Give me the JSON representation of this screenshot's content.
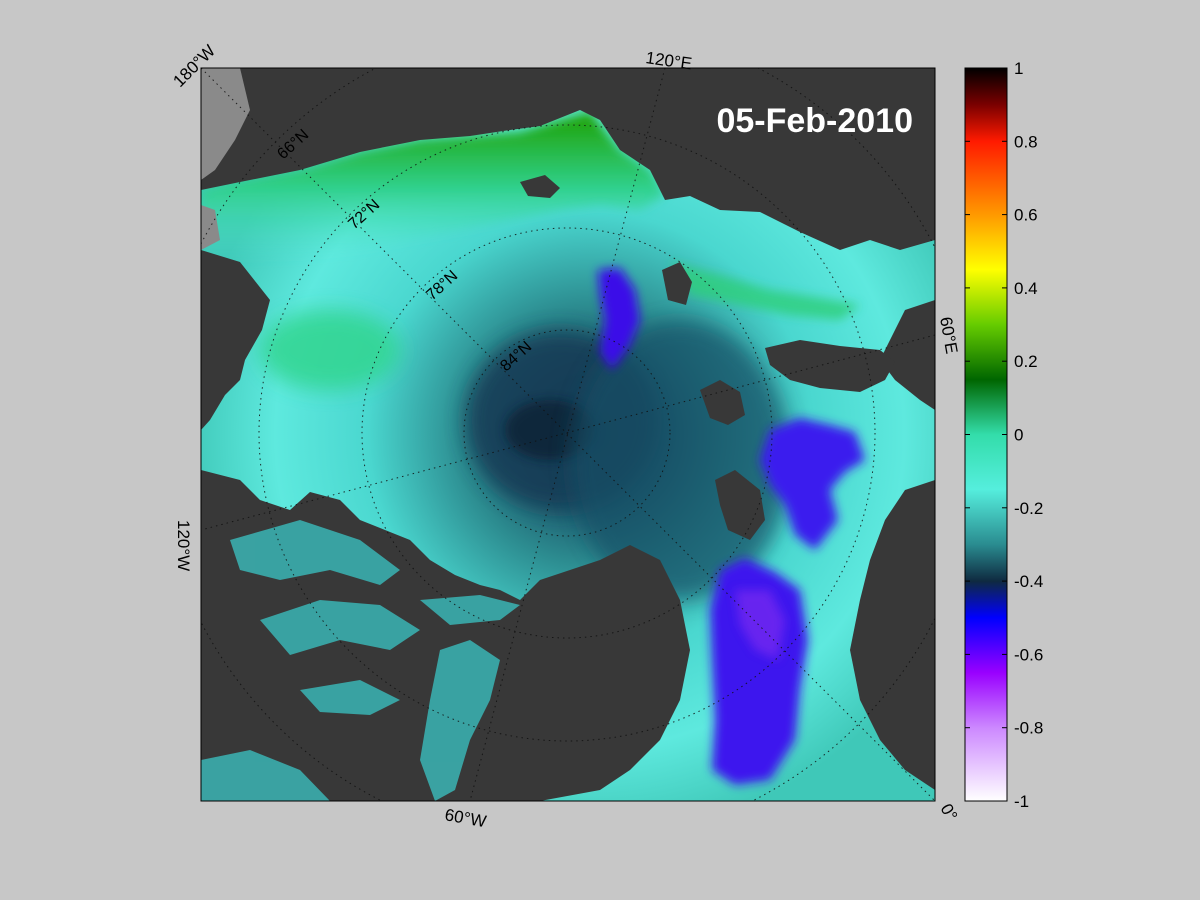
{
  "map": {
    "date_label": "05-Feb-2010",
    "longitude_labels": [
      "180°W",
      "120°E",
      "60°E",
      "0°",
      "60°W",
      "120°W"
    ],
    "latitude_labels": [
      "66°N",
      "72°N",
      "78°N",
      "84°N"
    ],
    "colors": {
      "land": "#383838",
      "no_data": "#8a8a8a",
      "background": "#c7c7c7"
    }
  },
  "colorbar": {
    "min": -1,
    "max": 1,
    "tick_labels": [
      "1",
      "0.8",
      "0.6",
      "0.4",
      "0.2",
      "0",
      "-0.2",
      "-0.4",
      "-0.6",
      "-0.8",
      "-1"
    ],
    "tick_values": [
      1,
      0.8,
      0.6,
      0.4,
      0.2,
      0,
      -0.2,
      -0.4,
      -0.6,
      -0.8,
      -1
    ],
    "stops": [
      {
        "value": 1.0,
        "color": "#000000"
      },
      {
        "value": 0.9,
        "color": "#7a0000"
      },
      {
        "value": 0.8,
        "color": "#ff1a00"
      },
      {
        "value": 0.6,
        "color": "#ff9900"
      },
      {
        "value": 0.45,
        "color": "#ffff00"
      },
      {
        "value": 0.3,
        "color": "#66cc00"
      },
      {
        "value": 0.15,
        "color": "#006600"
      },
      {
        "value": 0.0,
        "color": "#33ddaa"
      },
      {
        "value": -0.15,
        "color": "#55eedd"
      },
      {
        "value": -0.3,
        "color": "#2a8c90"
      },
      {
        "value": -0.4,
        "color": "#0f2a40"
      },
      {
        "value": -0.5,
        "color": "#0000ff"
      },
      {
        "value": -0.65,
        "color": "#9900ff"
      },
      {
        "value": -0.8,
        "color": "#cc88ff"
      },
      {
        "value": -1.0,
        "color": "#ffffff"
      }
    ]
  }
}
